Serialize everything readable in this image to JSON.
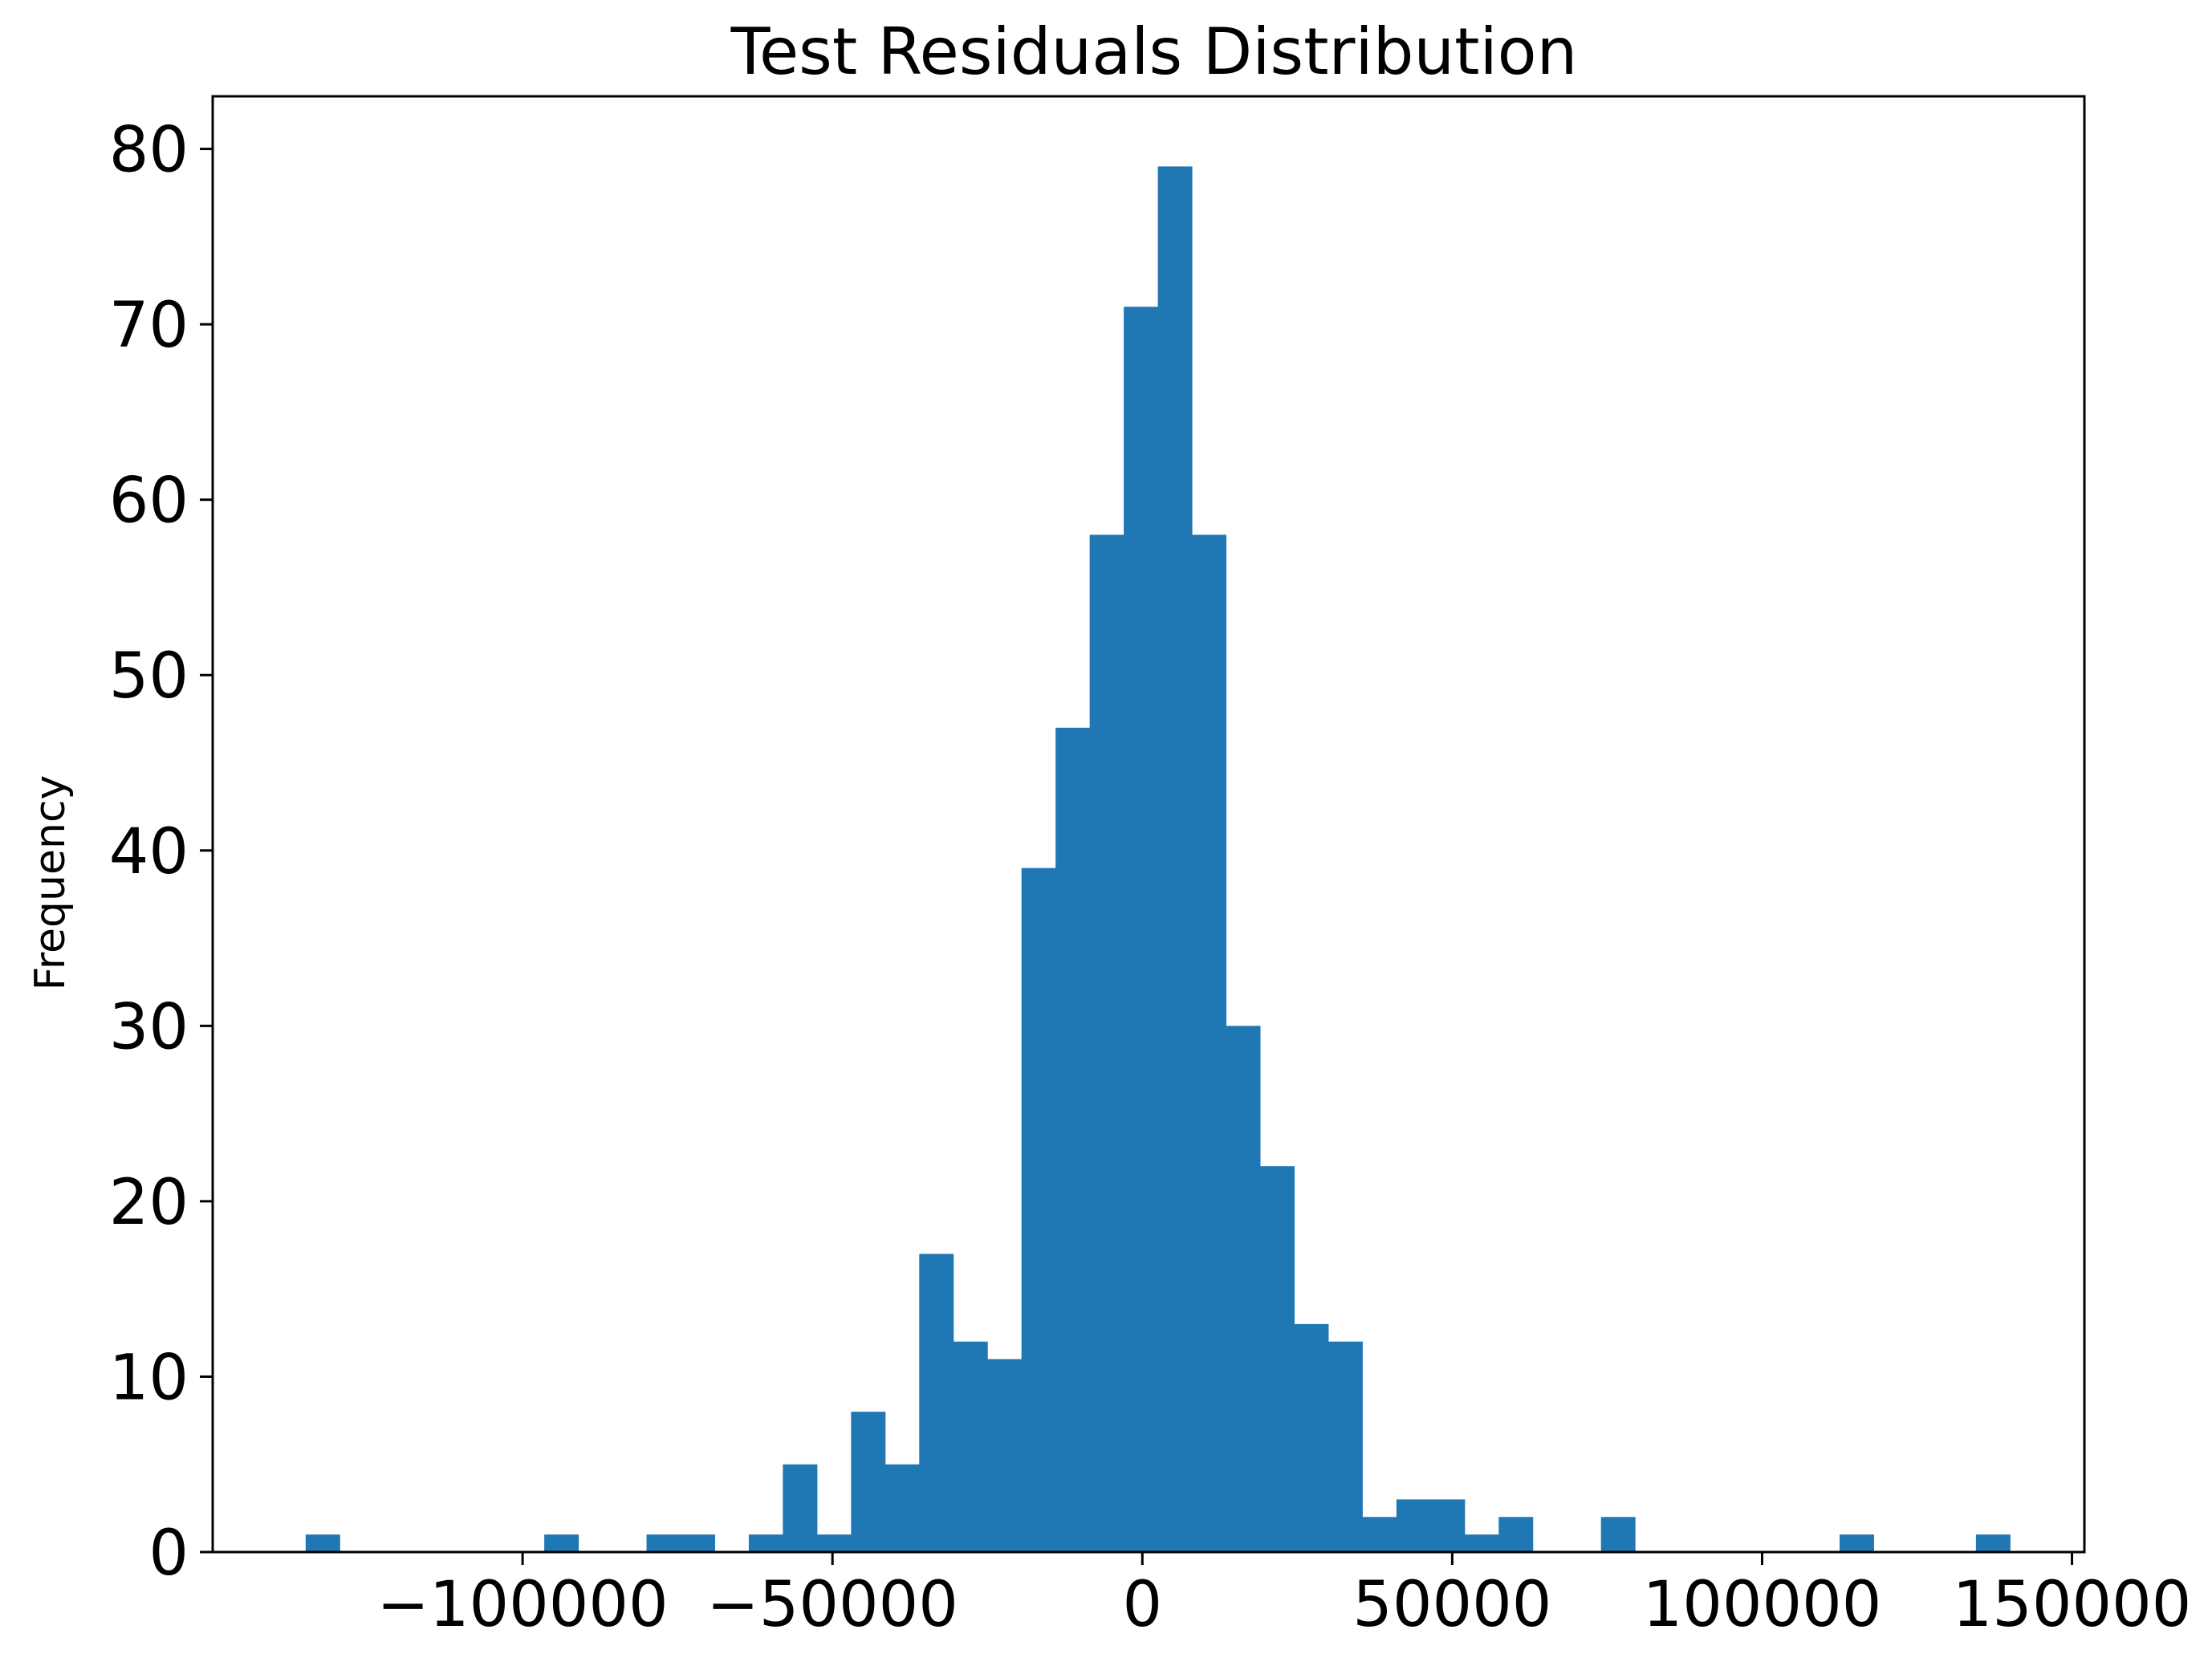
{
  "chart_data": {
    "type": "bar",
    "title": "Test Residuals Distribution",
    "xlabel": "",
    "ylabel": "Frequency",
    "xlim": [
      -150000,
      152000
    ],
    "ylim": [
      0,
      83
    ],
    "grid": false,
    "bar_color": "#1f77b4",
    "bin_width": 5500,
    "bins": [
      {
        "x0": -135000,
        "count": 1
      },
      {
        "x0": -96500,
        "count": 1
      },
      {
        "x0": -80000,
        "count": 1
      },
      {
        "x0": -74500,
        "count": 1
      },
      {
        "x0": -63500,
        "count": 1
      },
      {
        "x0": -58000,
        "count": 5
      },
      {
        "x0": -52500,
        "count": 1
      },
      {
        "x0": -47000,
        "count": 8
      },
      {
        "x0": -41500,
        "count": 5
      },
      {
        "x0": -36000,
        "count": 17
      },
      {
        "x0": -30500,
        "count": 12
      },
      {
        "x0": -25000,
        "count": 11
      },
      {
        "x0": -19500,
        "count": 39
      },
      {
        "x0": -14000,
        "count": 47
      },
      {
        "x0": -8500,
        "count": 58
      },
      {
        "x0": -3000,
        "count": 71
      },
      {
        "x0": 2500,
        "count": 79
      },
      {
        "x0": 8000,
        "count": 58
      },
      {
        "x0": 13500,
        "count": 30
      },
      {
        "x0": 19000,
        "count": 22
      },
      {
        "x0": 24500,
        "count": 13
      },
      {
        "x0": 30000,
        "count": 12
      },
      {
        "x0": 35500,
        "count": 2
      },
      {
        "x0": 41000,
        "count": 3
      },
      {
        "x0": 46500,
        "count": 3
      },
      {
        "x0": 52000,
        "count": 1
      },
      {
        "x0": 57500,
        "count": 2
      },
      {
        "x0": 74000,
        "count": 2
      },
      {
        "x0": 112500,
        "count": 1
      },
      {
        "x0": 134500,
        "count": 1
      }
    ],
    "xticks": [
      -100000,
      -50000,
      0,
      50000,
      100000,
      150000
    ],
    "xtick_labels": [
      "−100000",
      "−50000",
      "0",
      "50000",
      "100000",
      "150000"
    ],
    "yticks": [
      0,
      10,
      20,
      30,
      40,
      50,
      60,
      70,
      80
    ],
    "ytick_labels": [
      "0",
      "10",
      "20",
      "30",
      "40",
      "50",
      "60",
      "70",
      "80"
    ]
  }
}
